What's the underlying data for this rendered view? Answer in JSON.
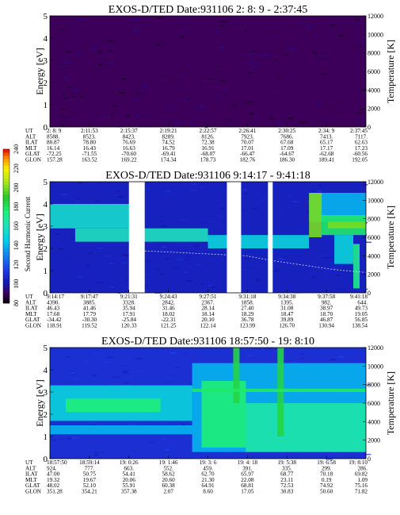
{
  "chart_data": [
    {
      "type": "heatmap",
      "title": "EXOS-D/TED  Date:931106  2: 8: 9 - 2:37:45",
      "ylabel": "Energy [eV]",
      "y2label": "Temperature [K]",
      "ylim": [
        0,
        5
      ],
      "y2lim": [
        0,
        12000
      ],
      "yticks": [
        "0",
        "1",
        "2",
        "3",
        "4",
        "5"
      ],
      "y2ticks": [
        "0",
        "2000",
        "4000",
        "6000",
        "8000",
        "10000",
        "12000"
      ],
      "base_level": 90,
      "bands": [],
      "gaps": [],
      "temperature_curve": [],
      "rows": [
        {
          "label": "UT",
          "values": [
            "2: 8: 9",
            "2:11:53",
            "2:15:37",
            "2:19:21",
            "2:22:57",
            "2:26:41",
            "2:30:25",
            "2:34: 9",
            "2:37:45"
          ]
        },
        {
          "label": "ALT",
          "values": [
            "8588.",
            "8523.",
            "8423.",
            "8289.",
            "8126.",
            "7923.",
            "7686.",
            "7413.",
            "7117."
          ]
        },
        {
          "label": "ILAT",
          "values": [
            "80.87",
            "78.80",
            "76.69",
            "74.52",
            "72.38",
            "70.07",
            "67.68",
            "65.17",
            "62.63"
          ]
        },
        {
          "label": "MLT",
          "values": [
            "16.14",
            "16.43",
            "16.63",
            "16.79",
            "16.91",
            "17.01",
            "17.09",
            "17.17",
            "17.23"
          ]
        },
        {
          "label": "GLAT",
          "values": [
            "-72.25",
            "-71.55",
            "-70.60",
            "-69.41",
            "-68.07",
            "-66.47",
            "-64.67",
            "-62.68",
            "-60.56"
          ]
        },
        {
          "label": "GLON",
          "values": [
            "157.28",
            "163.52",
            "169.22",
            "174.34",
            "178.73",
            "182.76",
            "186.30",
            "189.41",
            "192.05"
          ]
        }
      ]
    },
    {
      "type": "heatmap",
      "title": "EXOS-D/TED  Date:931106  9:14:17 - 9:41:18",
      "ylabel": "Energy [eV]",
      "y2label": "Temperature [K]",
      "ylim": [
        0,
        5
      ],
      "y2lim": [
        0,
        12000
      ],
      "yticks": [
        "0",
        "1",
        "2",
        "3",
        "4",
        "5"
      ],
      "y2ticks": [
        "0",
        "2000",
        "4000",
        "6000",
        "8000",
        "10000",
        "12000"
      ],
      "base_level": 105,
      "bands": [
        {
          "x0": 0.0,
          "x1": 0.26,
          "y": 2.9,
          "h": 1.1,
          "level": 155
        },
        {
          "x0": 0.08,
          "x1": 0.5,
          "y": 2.3,
          "h": 0.6,
          "level": 160
        },
        {
          "x0": 0.5,
          "x1": 0.82,
          "y": 2.0,
          "h": 0.6,
          "level": 150
        },
        {
          "x0": 0.82,
          "x1": 1.0,
          "y": 3.2,
          "h": 1.3,
          "level": 140
        },
        {
          "x0": 0.82,
          "x1": 0.86,
          "y": 2.5,
          "h": 2.0,
          "level": 200
        },
        {
          "x0": 0.86,
          "x1": 1.0,
          "y": 2.6,
          "h": 0.9,
          "level": 178
        },
        {
          "x0": 0.88,
          "x1": 1.0,
          "y": 2.9,
          "h": 0.3,
          "level": 200
        },
        {
          "x0": 0.9,
          "x1": 0.96,
          "y": 1.3,
          "h": 1.3,
          "level": 150
        },
        {
          "x0": 0.96,
          "x1": 0.98,
          "y": 0.2,
          "h": 2.0,
          "level": 170
        }
      ],
      "gaps": [
        {
          "x0": 0.25,
          "x1": 0.3
        },
        {
          "x0": 0.56,
          "x1": 0.605
        },
        {
          "x0": 0.69,
          "x1": 0.705
        }
      ],
      "temperature_curve": [
        {
          "x": 0.25,
          "y": 4600
        },
        {
          "x": 0.38,
          "y": 4400
        },
        {
          "x": 0.5,
          "y": 4200
        },
        {
          "x": 0.62,
          "y": 4000
        },
        {
          "x": 0.7,
          "y": 3500
        },
        {
          "x": 0.8,
          "y": 3000
        },
        {
          "x": 0.9,
          "y": 2500
        },
        {
          "x": 1.0,
          "y": 2200
        }
      ],
      "rows": [
        {
          "label": "UT",
          "values": [
            "9:14:17",
            "9:17:47",
            "9:21:31",
            "9:24:43",
            "9:27:51",
            "9:31:18",
            "9:34:38",
            "9:37:58",
            "9:41:18"
          ]
        },
        {
          "label": "ALT",
          "values": [
            "4390.",
            "3885.",
            "3328.",
            "2842.",
            "2367.",
            "1858.",
            "1395.",
            "982.",
            "644."
          ]
        },
        {
          "label": "ILAT",
          "values": [
            "46.43",
            "41.46",
            "35.94",
            "31.46",
            "28.14",
            "27.40",
            "31.08",
            "38.97",
            "49.73"
          ]
        },
        {
          "label": "MLT",
          "values": [
            "17.68",
            "17.79",
            "17.91",
            "18.02",
            "18.14",
            "18.29",
            "18.47",
            "18.70",
            "19.05"
          ]
        },
        {
          "label": "GLAT",
          "values": [
            "-34.42",
            "-30.30",
            "-25.84",
            "-22.31",
            "20.10",
            "36.78",
            "39.89",
            "46.87",
            "56.85"
          ]
        },
        {
          "label": "GLON",
          "values": [
            "118.91",
            "119.52",
            "120.33",
            "121.25",
            "122.14",
            "123.99",
            "126.70",
            "130.94",
            "138.54"
          ]
        }
      ]
    },
    {
      "type": "heatmap",
      "title": "EXOS-D/TED  Date:931106  18:57:50 - 19: 8:10",
      "ylabel": "Energy [eV]",
      "y2label": "Temperature [K]",
      "ylim": [
        0,
        5
      ],
      "y2lim": [
        0,
        12000
      ],
      "yticks": [
        "0",
        "1",
        "2",
        "3",
        "4",
        "5"
      ],
      "y2ticks": [
        "0",
        "2000",
        "4000",
        "6000",
        "8000",
        "10000",
        "12000"
      ],
      "base_level": 110,
      "bands": [
        {
          "x0": 0.0,
          "x1": 0.45,
          "y": 1.7,
          "h": 1.6,
          "level": 150
        },
        {
          "x0": 0.05,
          "x1": 0.35,
          "y": 2.1,
          "h": 0.6,
          "level": 175
        },
        {
          "x0": 0.0,
          "x1": 0.45,
          "y": 1.1,
          "h": 0.4,
          "level": 140
        },
        {
          "x0": 0.45,
          "x1": 1.0,
          "y": 0.3,
          "h": 4.0,
          "level": 140
        },
        {
          "x0": 0.48,
          "x1": 0.62,
          "y": 0.5,
          "h": 3.0,
          "level": 175
        },
        {
          "x0": 0.62,
          "x1": 1.0,
          "y": 0.3,
          "h": 2.2,
          "level": 165
        },
        {
          "x0": 0.58,
          "x1": 0.6,
          "y": 2.5,
          "h": 2.5,
          "level": 185
        },
        {
          "x0": 0.72,
          "x1": 0.74,
          "y": 1.0,
          "h": 4.0,
          "level": 185
        },
        {
          "x0": 0.45,
          "x1": 1.0,
          "y": 3.0,
          "h": 0.15,
          "level": 178
        }
      ],
      "gaps": [],
      "temperature_curve": [],
      "rows": [
        {
          "label": "UT",
          "values": [
            "18:57:50",
            "18:59:14",
            "19: 0:26",
            "19: 1:46",
            "19: 3: 6",
            "19: 4: 18",
            "19: 5:38",
            "19: 6:58",
            "19: 8:10"
          ]
        },
        {
          "label": "ALT",
          "values": [
            "924.",
            "777.",
            "663.",
            "552.",
            "459.",
            "391.",
            "335.",
            "299.",
            "286."
          ]
        },
        {
          "label": "ILAT",
          "values": [
            "47.00",
            "50.75",
            "54.41",
            "58.62",
            "62.70",
            "65.97",
            "68.77",
            "70.18",
            "69.82"
          ]
        },
        {
          "label": "MLT",
          "values": [
            "19.32",
            "19.67",
            "20.06",
            "20.60",
            "21.30",
            "22.08",
            "23.11",
            "0.19",
            "1.09"
          ]
        },
        {
          "label": "GLAT",
          "values": [
            "48.02",
            "52.10",
            "55.91",
            "60.38",
            "64.91",
            "68.81",
            "72.53",
            "74.92",
            "75.16"
          ]
        },
        {
          "label": "GLON",
          "values": [
            "351.28",
            "354.21",
            "357.38",
            "2.07",
            "8.60",
            "17.05",
            "30.83",
            "50.60",
            "71.82"
          ]
        }
      ]
    }
  ],
  "colorbar": {
    "label": "Second Harmonic Current",
    "ticks": [
      "80",
      "100",
      "120",
      "140",
      "160",
      "180",
      "200",
      "220",
      "240"
    ],
    "range": [
      80,
      240
    ]
  }
}
